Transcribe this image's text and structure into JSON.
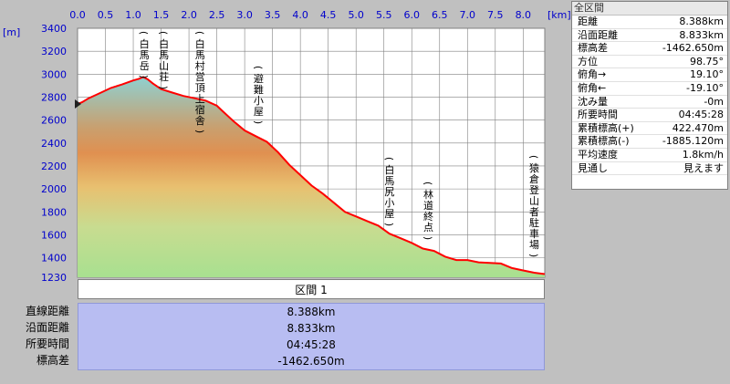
{
  "chart_data": {
    "type": "area",
    "x_unit_label": "[km]",
    "y_unit_label": "[m]",
    "xlim": [
      0,
      8.388
    ],
    "ylim": [
      1230,
      3400
    ],
    "x_ticks": [
      "0.0",
      "0.5",
      "1.0",
      "1.5",
      "2.0",
      "2.5",
      "3.0",
      "3.5",
      "4.0",
      "4.5",
      "5.0",
      "5.5",
      "6.0",
      "6.5",
      "7.0",
      "7.5",
      "8.0"
    ],
    "x_tick_values": [
      0,
      0.5,
      1.0,
      1.5,
      2.0,
      2.5,
      3.0,
      3.5,
      4.0,
      4.5,
      5.0,
      5.5,
      6.0,
      6.5,
      7.0,
      7.5,
      8.0
    ],
    "y_ticks": [
      "3400",
      "3200",
      "3000",
      "2800",
      "2600",
      "2400",
      "2200",
      "2000",
      "1800",
      "1600",
      "1400",
      "1230"
    ],
    "y_tick_values": [
      3400,
      3200,
      3000,
      2800,
      2600,
      2400,
      2200,
      2000,
      1800,
      1600,
      1400,
      1230
    ],
    "series": [
      {
        "x": [
          0,
          0.08,
          0.2,
          0.4,
          0.6,
          0.8,
          1.0,
          1.1,
          1.18,
          1.26,
          1.35,
          1.5,
          1.7,
          1.9,
          2.1,
          2.3,
          2.5,
          2.6,
          2.8,
          3.0,
          3.2,
          3.4,
          3.6,
          3.8,
          4.0,
          4.2,
          4.4,
          4.6,
          4.8,
          5.0,
          5.2,
          5.4,
          5.6,
          5.8,
          6.0,
          6.2,
          6.4,
          6.6,
          6.8,
          7.0,
          7.2,
          7.4,
          7.6,
          7.8,
          8.0,
          8.2,
          8.388
        ],
        "y": [
          2740,
          2755,
          2790,
          2835,
          2880,
          2910,
          2945,
          2960,
          2975,
          2955,
          2920,
          2870,
          2840,
          2810,
          2790,
          2770,
          2725,
          2680,
          2590,
          2510,
          2460,
          2410,
          2320,
          2210,
          2120,
          2030,
          1960,
          1880,
          1800,
          1760,
          1720,
          1680,
          1610,
          1570,
          1530,
          1480,
          1460,
          1410,
          1380,
          1380,
          1360,
          1355,
          1350,
          1310,
          1290,
          1270,
          1258
        ]
      }
    ],
    "waypoints": [
      {
        "label": "白馬岳",
        "x": 1.2
      },
      {
        "label": "白馬山荘",
        "x": 1.55
      },
      {
        "label": "白馬村営頂上宿舎",
        "x": 2.2
      },
      {
        "label": "避難小屋",
        "x": 3.25
      },
      {
        "label": "白馬尻小屋",
        "x": 5.6
      },
      {
        "label": "林道終点",
        "x": 6.3
      },
      {
        "label": "猿倉登山者駐車場",
        "x": 8.2
      }
    ],
    "grid": true,
    "line_color": "#ff0000"
  },
  "info_panel": {
    "title": "全区間",
    "rows": [
      {
        "label": "距離",
        "value": "8.388km"
      },
      {
        "label": "沿面距離",
        "value": "8.833km"
      },
      {
        "label": "標高差",
        "value": "-1462.650m"
      },
      {
        "label": "方位",
        "value": "98.75°"
      },
      {
        "label": "俯角→",
        "value": "19.10°"
      },
      {
        "label": "俯角←",
        "value": "-19.10°"
      },
      {
        "label": "沈み量",
        "value": "-0m"
      },
      {
        "label": "所要時間",
        "value": "04:45:28"
      },
      {
        "label": "累積標高(+)",
        "value": "422.470m"
      },
      {
        "label": "累積標高(-)",
        "value": "-1885.120m"
      },
      {
        "label": "平均速度",
        "value": "1.8km/h"
      },
      {
        "label": "見通し",
        "value": "見えます"
      }
    ]
  },
  "summary": {
    "section_title": "区間 1",
    "rows": [
      {
        "label": "直線距離",
        "value": "8.388km"
      },
      {
        "label": "沿面距離",
        "value": "8.833km"
      },
      {
        "label": "所要時間",
        "value": "04:45:28"
      },
      {
        "label": "標高差",
        "value": "-1462.650m"
      }
    ]
  }
}
